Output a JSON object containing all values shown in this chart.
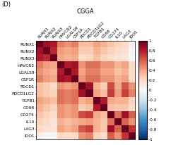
{
  "title": "CGGA",
  "panel_label": "(D)",
  "genes": [
    "RUNX1",
    "RUNX2",
    "RUNX3",
    "HAVCR2",
    "LGALS9",
    "CSF1R",
    "PDCD1",
    "PDCD1LG2",
    "TGFB1",
    "CD98",
    "CD274",
    "IL10",
    "LAG3",
    "IDO1"
  ],
  "corr_matrix": [
    [
      1.0,
      0.85,
      0.8,
      0.5,
      0.45,
      0.5,
      0.3,
      0.3,
      0.4,
      0.35,
      0.28,
      0.22,
      0.2,
      0.05
    ],
    [
      0.85,
      1.0,
      0.75,
      0.42,
      0.38,
      0.42,
      0.25,
      0.25,
      0.35,
      0.28,
      0.22,
      0.18,
      0.15,
      0.02
    ],
    [
      0.8,
      0.75,
      1.0,
      0.38,
      0.35,
      0.38,
      0.2,
      0.22,
      0.3,
      0.22,
      0.18,
      0.14,
      0.12,
      0.0
    ],
    [
      0.5,
      0.42,
      0.38,
      1.0,
      0.8,
      0.85,
      0.45,
      0.55,
      0.55,
      0.45,
      0.45,
      0.35,
      0.4,
      0.2
    ],
    [
      0.45,
      0.38,
      0.35,
      0.8,
      1.0,
      0.8,
      0.4,
      0.5,
      0.5,
      0.4,
      0.4,
      0.3,
      0.35,
      0.18
    ],
    [
      0.5,
      0.42,
      0.38,
      0.85,
      0.8,
      1.0,
      0.45,
      0.55,
      0.55,
      0.45,
      0.45,
      0.35,
      0.4,
      0.2
    ],
    [
      0.3,
      0.25,
      0.2,
      0.45,
      0.4,
      0.45,
      1.0,
      0.85,
      0.35,
      0.25,
      0.65,
      0.38,
      0.62,
      0.45
    ],
    [
      0.3,
      0.25,
      0.22,
      0.55,
      0.5,
      0.55,
      0.85,
      1.0,
      0.4,
      0.3,
      0.7,
      0.42,
      0.68,
      0.5
    ],
    [
      0.4,
      0.35,
      0.3,
      0.55,
      0.5,
      0.55,
      0.35,
      0.4,
      1.0,
      0.8,
      0.38,
      0.35,
      0.35,
      0.22
    ],
    [
      0.35,
      0.28,
      0.22,
      0.45,
      0.4,
      0.45,
      0.25,
      0.3,
      0.8,
      1.0,
      0.3,
      0.28,
      0.28,
      0.18
    ],
    [
      0.28,
      0.22,
      0.18,
      0.45,
      0.4,
      0.45,
      0.65,
      0.7,
      0.38,
      0.3,
      1.0,
      0.55,
      0.85,
      0.6
    ],
    [
      0.22,
      0.18,
      0.14,
      0.35,
      0.3,
      0.35,
      0.38,
      0.42,
      0.35,
      0.28,
      0.55,
      1.0,
      0.58,
      0.45
    ],
    [
      0.2,
      0.15,
      0.12,
      0.4,
      0.35,
      0.4,
      0.62,
      0.68,
      0.35,
      0.28,
      0.85,
      0.58,
      1.0,
      0.72
    ],
    [
      0.05,
      0.02,
      0.0,
      0.2,
      0.18,
      0.2,
      0.45,
      0.5,
      0.22,
      0.18,
      0.6,
      0.45,
      0.72,
      1.0
    ]
  ],
  "vmin": -1,
  "vmax": 1,
  "cmap": "RdBu_r",
  "colorbar_ticks": [
    1,
    0.8,
    0.6,
    0.4,
    0.2,
    0,
    -0.2,
    -0.4,
    -0.6,
    -0.8,
    -1
  ],
  "colorbar_ticklabels": [
    "1",
    "0.8",
    "0.6",
    "0.4",
    "0.2",
    "0",
    "-0.2",
    "-0.4",
    "-0.6",
    "-0.8",
    "-1"
  ],
  "title_fontsize": 6,
  "label_fontsize": 4.2,
  "panel_fontsize": 6
}
